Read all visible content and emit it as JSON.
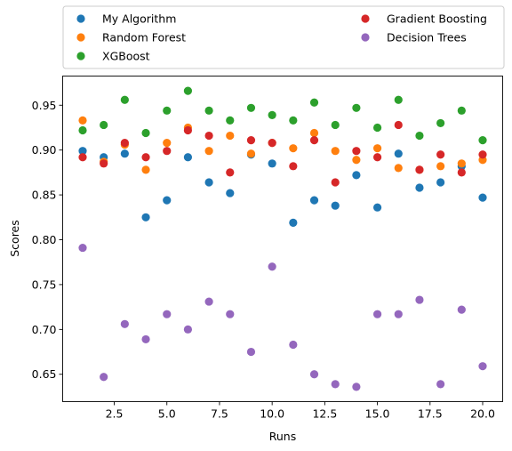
{
  "chart_data": {
    "type": "scatter",
    "xlabel": "Runs",
    "ylabel": "Scores",
    "xlim": [
      0.05,
      20.95
    ],
    "ylim": [
      0.6195,
      0.9825
    ],
    "xticks": [
      2.5,
      5.0,
      7.5,
      10.0,
      12.5,
      15.0,
      17.5,
      20.0
    ],
    "xtick_labels": [
      "2.5",
      "5.0",
      "7.5",
      "10.0",
      "12.5",
      "15.0",
      "17.5",
      "20.0"
    ],
    "yticks": [
      0.65,
      0.7,
      0.75,
      0.8,
      0.85,
      0.9,
      0.95
    ],
    "ytick_labels": [
      "0.65",
      "0.70",
      "0.75",
      "0.80",
      "0.85",
      "0.90",
      "0.95"
    ],
    "grid": false,
    "legend": "top-outside",
    "x": [
      1,
      2,
      3,
      4,
      5,
      6,
      7,
      8,
      9,
      10,
      11,
      12,
      13,
      14,
      15,
      16,
      17,
      18,
      19,
      20
    ],
    "series": [
      {
        "name": "My Algorithm",
        "color": "#1f77b4",
        "values": [
          0.899,
          0.892,
          0.896,
          0.825,
          0.844,
          0.892,
          0.864,
          0.852,
          0.895,
          0.885,
          0.819,
          0.844,
          0.838,
          0.872,
          0.836,
          0.896,
          0.858,
          0.864,
          0.882,
          0.847
        ]
      },
      {
        "name": "Random Forest",
        "color": "#ff7f0e",
        "values": [
          0.933,
          0.887,
          0.906,
          0.878,
          0.908,
          0.925,
          0.899,
          0.916,
          0.896,
          0.908,
          0.902,
          0.919,
          0.899,
          0.889,
          0.902,
          0.88,
          0.878,
          0.882,
          0.885,
          0.889
        ]
      },
      {
        "name": "XGBoost",
        "color": "#2ca02c",
        "values": [
          0.922,
          0.928,
          0.956,
          0.919,
          0.944,
          0.966,
          0.944,
          0.933,
          0.947,
          0.939,
          0.933,
          0.953,
          0.928,
          0.947,
          0.925,
          0.956,
          0.916,
          0.93,
          0.944,
          0.911
        ]
      },
      {
        "name": "Gradient Boosting",
        "color": "#d62728",
        "values": [
          0.892,
          0.885,
          0.908,
          0.892,
          0.899,
          0.922,
          0.916,
          0.875,
          0.911,
          0.908,
          0.882,
          0.911,
          0.864,
          0.899,
          0.892,
          0.928,
          0.878,
          0.895,
          0.875,
          0.895
        ]
      },
      {
        "name": "Decision Trees",
        "color": "#9467bd",
        "values": [
          0.791,
          0.647,
          0.706,
          0.689,
          0.717,
          0.7,
          0.731,
          0.717,
          0.675,
          0.77,
          0.683,
          0.65,
          0.639,
          0.636,
          0.717,
          0.717,
          0.733,
          0.639,
          0.722,
          0.659
        ]
      }
    ]
  }
}
